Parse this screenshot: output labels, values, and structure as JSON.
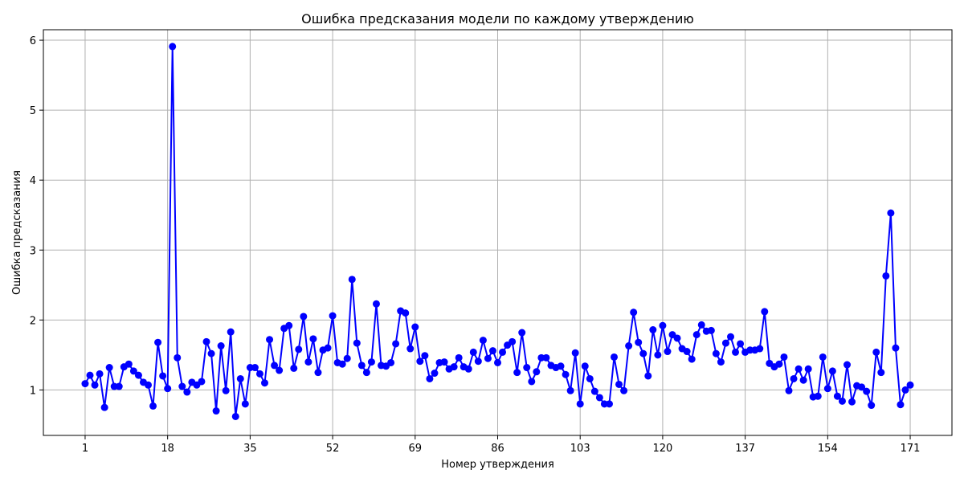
{
  "chart_data": {
    "type": "line",
    "title": "Ошибка предсказания модели по каждому утверждению",
    "xlabel": "Номер утверждения",
    "ylabel": "Ошибка предсказания",
    "xlim": [
      -7.6,
      179.6
    ],
    "ylim": [
      0.35,
      6.15
    ],
    "xticks": [
      1,
      18,
      35,
      52,
      69,
      86,
      103,
      120,
      137,
      154,
      171
    ],
    "yticks": [
      1,
      2,
      3,
      4,
      5,
      6
    ],
    "grid": true,
    "series": [
      {
        "color": "#0000ff",
        "marker": "circle",
        "x": [
          1,
          2,
          3,
          4,
          5,
          6,
          7,
          8,
          9,
          10,
          11,
          12,
          13,
          14,
          15,
          16,
          17,
          18,
          19,
          20,
          21,
          22,
          23,
          24,
          25,
          26,
          27,
          28,
          29,
          30,
          31,
          32,
          33,
          34,
          35,
          36,
          37,
          38,
          39,
          40,
          41,
          42,
          43,
          44,
          45,
          46,
          47,
          48,
          49,
          50,
          51,
          52,
          53,
          54,
          55,
          56,
          57,
          58,
          59,
          60,
          61,
          62,
          63,
          64,
          65,
          66,
          67,
          68,
          69,
          70,
          71,
          72,
          73,
          74,
          75,
          76,
          77,
          78,
          79,
          80,
          81,
          82,
          83,
          84,
          85,
          86,
          87,
          88,
          89,
          90,
          91,
          92,
          93,
          94,
          95,
          96,
          97,
          98,
          99,
          100,
          101,
          102,
          103,
          104,
          105,
          106,
          107,
          108,
          109,
          110,
          111,
          112,
          113,
          114,
          115,
          116,
          117,
          118,
          119,
          120,
          121,
          122,
          123,
          124,
          125,
          126,
          127,
          128,
          129,
          130,
          131,
          132,
          133,
          134,
          135,
          136,
          137,
          138,
          139,
          140,
          141,
          142,
          143,
          144,
          145,
          146,
          147,
          148,
          149,
          150,
          151,
          152,
          153,
          154,
          155,
          156,
          157,
          158,
          159,
          160,
          161,
          162,
          163,
          164,
          165,
          166,
          167,
          168,
          169,
          170,
          171
        ],
        "values": [
          1.09,
          1.21,
          1.07,
          1.23,
          0.75,
          1.32,
          1.05,
          1.05,
          1.33,
          1.37,
          1.27,
          1.21,
          1.11,
          1.07,
          0.77,
          1.68,
          1.2,
          1.02,
          5.91,
          1.46,
          1.05,
          0.97,
          1.11,
          1.07,
          1.12,
          1.69,
          1.52,
          0.7,
          1.63,
          0.99,
          1.83,
          0.62,
          1.16,
          0.8,
          1.32,
          1.32,
          1.23,
          1.1,
          1.72,
          1.35,
          1.28,
          1.88,
          1.92,
          1.31,
          1.58,
          2.05,
          1.4,
          1.73,
          1.25,
          1.57,
          1.6,
          2.06,
          1.39,
          1.37,
          1.45,
          2.58,
          1.67,
          1.35,
          1.25,
          1.4,
          2.23,
          1.35,
          1.34,
          1.39,
          1.66,
          2.13,
          2.1,
          1.59,
          1.9,
          1.41,
          1.49,
          1.16,
          1.24,
          1.39,
          1.4,
          1.3,
          1.33,
          1.46,
          1.33,
          1.3,
          1.54,
          1.41,
          1.71,
          1.45,
          1.56,
          1.39,
          1.54,
          1.64,
          1.69,
          1.25,
          1.82,
          1.32,
          1.12,
          1.26,
          1.46,
          1.46,
          1.35,
          1.32,
          1.34,
          1.22,
          0.99,
          1.53,
          0.8,
          1.34,
          1.16,
          0.98,
          0.89,
          0.8,
          0.8,
          1.47,
          1.08,
          0.99,
          1.63,
          2.11,
          1.68,
          1.52,
          1.2,
          1.86,
          1.5,
          1.92,
          1.55,
          1.79,
          1.74,
          1.59,
          1.55,
          1.44,
          1.79,
          1.93,
          1.84,
          1.85,
          1.52,
          1.4,
          1.67,
          1.76,
          1.54,
          1.66,
          1.54,
          1.57,
          1.57,
          1.59,
          2.12,
          1.38,
          1.33,
          1.37,
          1.47,
          0.99,
          1.16,
          1.3,
          1.14,
          1.3,
          0.9,
          0.91,
          1.47,
          1.02,
          1.27,
          0.91,
          0.84,
          1.36,
          0.83,
          1.06,
          1.04,
          0.98,
          0.78,
          1.54,
          1.25,
          2.63,
          3.53,
          1.6,
          0.79,
          1.0,
          1.07
        ]
      }
    ]
  }
}
